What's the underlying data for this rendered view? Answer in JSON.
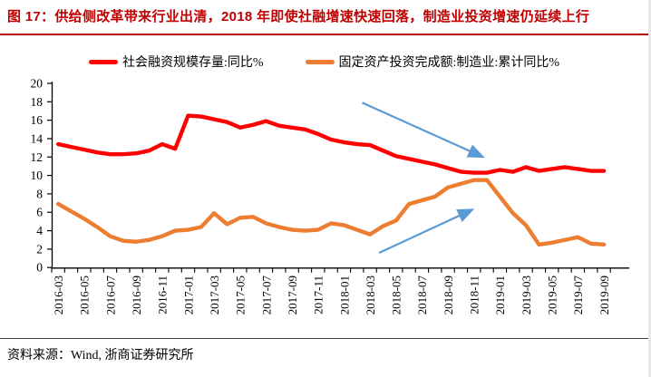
{
  "title": {
    "text": "图 17：供给侧改革带来行业出清，2018 年即使社融增速快速回落，制造业投资增速仍延续上行"
  },
  "source": {
    "text": "资料来源：Wind, 浙商证券研究所"
  },
  "colors": {
    "title_red": "#c00000",
    "axis_black": "#000000",
    "series_red": "#ff0000",
    "series_orange": "#ed7d31",
    "arrow_blue": "#5b9bd5"
  },
  "chart_data": {
    "type": "line",
    "grid": false,
    "legend_position": "top",
    "ylim": [
      0,
      20
    ],
    "ytick_step": 2,
    "x_tick_labels_shown": [
      "2016-03",
      "2016-05",
      "2016-07",
      "2016-09",
      "2016-11",
      "2017-01",
      "2017-03",
      "2017-05",
      "2017-07",
      "2017-09",
      "2017-11",
      "2018-01",
      "2018-03",
      "2018-05",
      "2018-07",
      "2018-09",
      "2018-11",
      "2019-01",
      "2019-03",
      "2019-05",
      "2019-07",
      "2019-09"
    ],
    "months": [
      "2016-03",
      "2016-04",
      "2016-05",
      "2016-06",
      "2016-07",
      "2016-08",
      "2016-09",
      "2016-10",
      "2016-11",
      "2016-12",
      "2017-01",
      "2017-02",
      "2017-03",
      "2017-04",
      "2017-05",
      "2017-06",
      "2017-07",
      "2017-08",
      "2017-09",
      "2017-10",
      "2017-11",
      "2017-12",
      "2018-01",
      "2018-02",
      "2018-03",
      "2018-04",
      "2018-05",
      "2018-06",
      "2018-07",
      "2018-08",
      "2018-09",
      "2018-10",
      "2018-11",
      "2018-12",
      "2019-01",
      "2019-02",
      "2019-03",
      "2019-04",
      "2019-05",
      "2019-06",
      "2019-07",
      "2019-08",
      "2019-09"
    ],
    "series": [
      {
        "name": "社会融资规模存量:同比%",
        "color": "#ff0000",
        "values": [
          13.4,
          13.1,
          12.8,
          12.5,
          12.3,
          12.3,
          12.4,
          12.7,
          13.4,
          12.9,
          16.5,
          16.4,
          16.1,
          15.8,
          15.2,
          15.5,
          15.9,
          15.4,
          15.2,
          15.0,
          14.5,
          13.9,
          13.6,
          13.4,
          13.3,
          12.7,
          12.1,
          11.8,
          11.5,
          11.2,
          10.8,
          10.4,
          10.3,
          10.3,
          10.6,
          10.4,
          10.9,
          10.5,
          10.7,
          10.9,
          10.7,
          10.5,
          10.5
        ]
      },
      {
        "name": "固定资产投资完成额:制造业:累计同比%",
        "color": "#ed7d31",
        "values": [
          6.9,
          6.1,
          5.3,
          4.4,
          3.4,
          2.9,
          2.8,
          3.0,
          3.4,
          4.0,
          4.1,
          4.4,
          5.9,
          4.7,
          5.4,
          5.5,
          4.8,
          4.4,
          4.1,
          4.0,
          4.1,
          4.8,
          4.6,
          4.1,
          3.6,
          4.5,
          5.1,
          6.9,
          7.3,
          7.7,
          8.7,
          9.1,
          9.5,
          9.5,
          7.7,
          5.9,
          4.6,
          2.5,
          2.7,
          3.0,
          3.3,
          2.6,
          2.5
        ]
      }
    ],
    "annotations": {
      "arrow_color": "#5b9bd5",
      "arrows": [
        {
          "x1": 23.4,
          "y1": 17.9,
          "x2": 32.7,
          "y2": 12.0
        },
        {
          "x1": 24.7,
          "y1": 1.6,
          "x2": 31.9,
          "y2": 6.3
        }
      ]
    }
  }
}
